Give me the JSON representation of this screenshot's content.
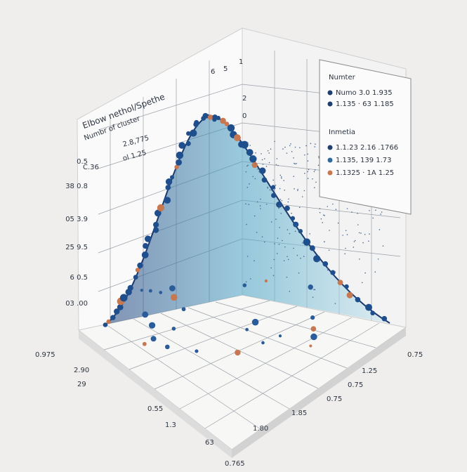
{
  "title": "Elbow nethol/Spethe",
  "subtitle": "Numbr of cluster",
  "left_legend": [
    "2.8,775",
    "ol 1.25",
    "C.36"
  ],
  "left_axis_labels": [
    "0.5",
    "38 0.8",
    "05 3.9",
    "25 9.5",
    "6 0.5",
    "03 .00"
  ],
  "top_labels": [
    "6",
    "5",
    "1",
    "2",
    "0"
  ],
  "floor_left_labels": [
    "0.975",
    "2.90",
    "29",
    "0.55",
    "1.3",
    "63",
    "0.765"
  ],
  "floor_right_labels": [
    "0.75",
    "1.25",
    "0.75",
    "0.75",
    "1.85",
    "1.80"
  ],
  "legend": {
    "title1": "Numter",
    "items1": [
      "Numo 3.0 1.935",
      "1.135 · 63 1.185"
    ],
    "title2": "Inmetia",
    "items2": [
      "1.1.23 2.16 .1766",
      "1.135, 139 1.73",
      "1.1325 · 1A 1.25"
    ]
  }
}
